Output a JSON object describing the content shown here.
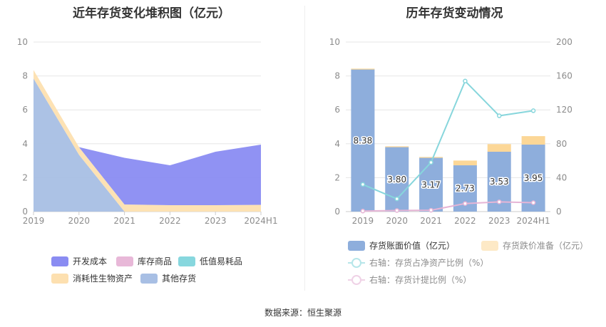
{
  "footer": {
    "source": "数据来源：恒生聚源"
  },
  "chart_data": [
    {
      "type": "area",
      "title": "近年存货变化堆积图（亿元）",
      "categories": [
        "2019",
        "2020",
        "2021",
        "2022",
        "2023",
        "2024H1"
      ],
      "ylim": [
        0,
        10
      ],
      "yticks": [
        "0",
        "2",
        "4",
        "6",
        "8",
        "10"
      ],
      "stacked": true,
      "grid": true,
      "legend_position": "bottom",
      "series": [
        {
          "name": "开发成本",
          "color": "#8a8cf2",
          "values": [
            0,
            0,
            2.75,
            2.35,
            3.15,
            3.55
          ]
        },
        {
          "name": "库存商品",
          "color": "#e8b8d8",
          "values": [
            0,
            0,
            0,
            0,
            0,
            0
          ]
        },
        {
          "name": "低值易耗品",
          "color": "#87d7de",
          "values": [
            0,
            0,
            0,
            0,
            0,
            0
          ]
        },
        {
          "name": "消耗性生物资产",
          "color": "#fde0b0",
          "values": [
            0.5,
            0.45,
            0.42,
            0.38,
            0.38,
            0.4
          ]
        },
        {
          "name": "其他存货",
          "color": "#a8bfe4",
          "values": [
            7.85,
            3.35,
            0,
            0,
            0,
            0
          ]
        }
      ]
    },
    {
      "type": "bar",
      "title": "历年存货变动情况",
      "categories": [
        "2019",
        "2020",
        "2021",
        "2022",
        "2023",
        "2024H1"
      ],
      "ylim": [
        0,
        10
      ],
      "yticks": [
        "0",
        "2",
        "4",
        "6",
        "8",
        "10"
      ],
      "y2lim": [
        0,
        200
      ],
      "y2ticks": [
        "0",
        "40",
        "80",
        "120",
        "160",
        "200"
      ],
      "stacked": true,
      "grid": true,
      "legend_position": "bottom",
      "series": [
        {
          "name": "存货账面价值（亿元）",
          "type": "bar",
          "color": "#8eaedc",
          "values": [
            8.38,
            3.8,
            3.17,
            2.73,
            3.53,
            3.95
          ],
          "labels": [
            "8.38",
            "3.80",
            "3.17",
            "2.73",
            "3.53",
            "3.95"
          ]
        },
        {
          "name": "存货跌价准备（亿元）",
          "type": "bar",
          "color": "#fcd797",
          "values": [
            0.05,
            0.05,
            0.05,
            0.28,
            0.45,
            0.5
          ]
        },
        {
          "name": "右轴：存货占净资产比例（%）",
          "type": "line",
          "axis": "right",
          "color": "#87d6dc",
          "values": [
            32,
            15,
            58,
            154,
            113,
            119
          ]
        },
        {
          "name": "右轴：存货计提比例（%）",
          "type": "line",
          "axis": "right",
          "color": "#e6b5d6",
          "values": [
            0.6,
            1.3,
            1.6,
            9.5,
            11.5,
            10.5
          ]
        }
      ]
    }
  ]
}
